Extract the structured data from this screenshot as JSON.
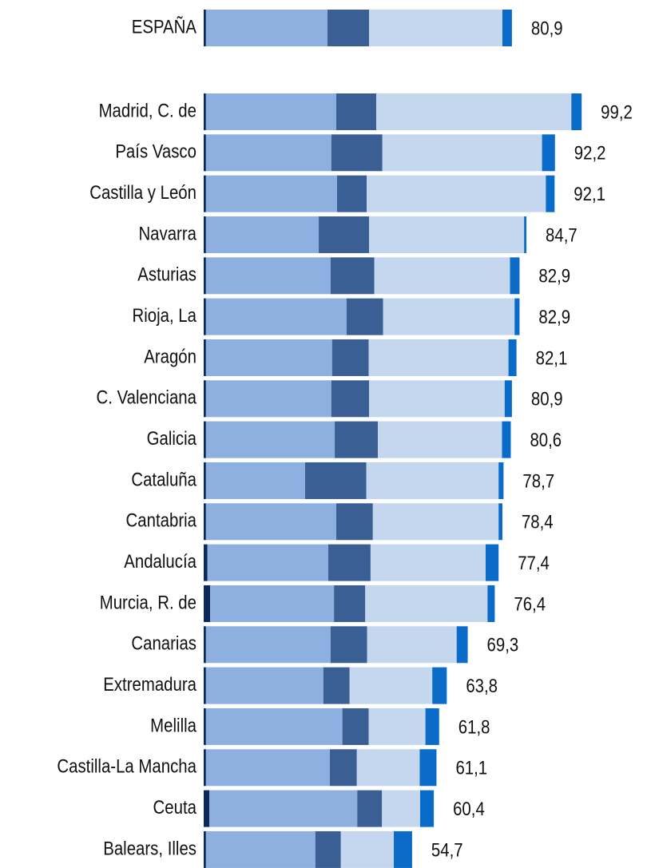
{
  "chart_data": {
    "type": "stacked-hbar",
    "categories": [
      "ESPAÑA",
      "Madrid, C. de",
      "País Vasco",
      "Castilla y León",
      "Navarra",
      "Asturias",
      "Rioja, La",
      "Aragón",
      "C. Valenciana",
      "Galicia",
      "Cataluña",
      "Cantabria",
      "Andalucía",
      "Murcia, R. de",
      "Canarias",
      "Extremadura",
      "Melilla",
      "Castilla-La Mancha",
      "Ceuta",
      "Balears, Illes"
    ],
    "series": [
      {
        "color": "#0b2a5b",
        "values": [
          0.6,
          0.6,
          0.6,
          0.6,
          0.6,
          0.6,
          0.6,
          0.6,
          0.6,
          0.6,
          0.6,
          0.6,
          1.0,
          1.7,
          0.6,
          0.6,
          0.6,
          0.6,
          1.5,
          0.6
        ]
      },
      {
        "color": "#8db0e0",
        "values": [
          31.9,
          34.2,
          32.9,
          34.4,
          29.6,
          32.7,
          36.9,
          33.1,
          32.9,
          33.8,
          26.0,
          34.2,
          31.7,
          32.5,
          32.7,
          30.8,
          35.8,
          32.5,
          38.8,
          28.7
        ]
      },
      {
        "color": "#3a5f94",
        "values": [
          10.9,
          10.5,
          13.4,
          7.8,
          13.2,
          11.5,
          9.6,
          9.6,
          9.9,
          11.3,
          16.1,
          9.6,
          11.1,
          8.2,
          9.6,
          6.9,
          6.9,
          7.1,
          6.5,
          6.7
        ]
      },
      {
        "color": "#c5d7ef",
        "values": [
          35.0,
          51.2,
          41.9,
          47.0,
          40.7,
          35.6,
          34.5,
          36.7,
          35.6,
          32.6,
          34.7,
          33.0,
          30.2,
          32.1,
          23.5,
          21.7,
          14.9,
          16.5,
          10.0,
          13.9
        ]
      },
      {
        "color": "#0a6cc8",
        "values": [
          2.5,
          2.7,
          3.4,
          2.3,
          0.6,
          2.5,
          1.3,
          2.1,
          1.9,
          2.3,
          1.3,
          1.0,
          3.4,
          1.9,
          2.9,
          3.8,
          3.6,
          4.4,
          3.6,
          4.8
        ]
      }
    ],
    "totals": [
      80.9,
      99.2,
      92.2,
      92.1,
      84.7,
      82.9,
      82.9,
      82.1,
      80.9,
      80.6,
      78.7,
      78.4,
      77.4,
      76.4,
      69.3,
      63.8,
      61.8,
      61.1,
      60.4,
      54.7
    ],
    "total_labels": [
      "80,9",
      "99,2",
      "92,2",
      "92,1",
      "84,7",
      "82,9",
      "82,9",
      "82,1",
      "80,9",
      "80,6",
      "78,7",
      "78,4",
      "77,4",
      "76,4",
      "69,3",
      "63,8",
      "61,8",
      "61,1",
      "60,4",
      "54,7"
    ]
  }
}
